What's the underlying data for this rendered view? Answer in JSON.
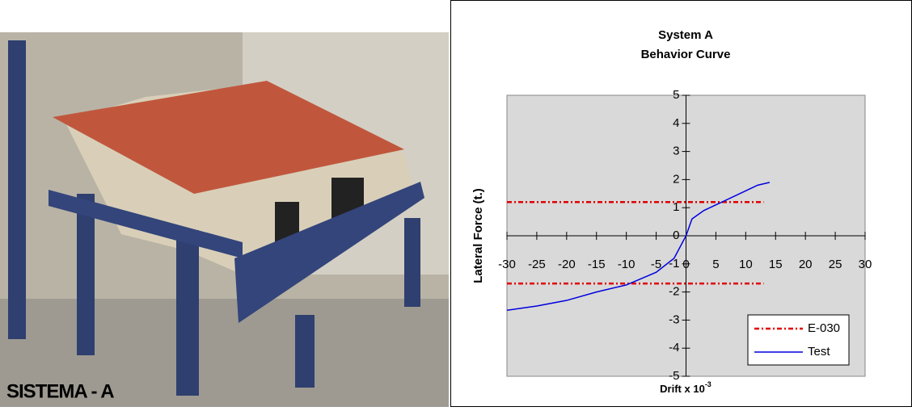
{
  "caption": "SISTEMA - A",
  "chart_data": {
    "type": "line",
    "title": "System A",
    "subtitle": "Behavior Curve",
    "xlabel": "Drift x 10",
    "xlabel_sup": "-3",
    "ylabel": "Lateral Force (t.)",
    "xlim": [
      -30,
      30
    ],
    "ylim": [
      -5,
      5
    ],
    "xticks": [
      -30,
      -25,
      -20,
      -15,
      -10,
      -5,
      0,
      5,
      10,
      15,
      20,
      25,
      30
    ],
    "yticks": [
      -5,
      -4,
      -3,
      -2,
      -1,
      0,
      1,
      2,
      3,
      4,
      5
    ],
    "legend": "lower right",
    "series": [
      {
        "name": "E-030",
        "color": "#e00000",
        "dash": "dashdot",
        "x": [
          -30,
          13,
          null,
          -30,
          13
        ],
        "values": [
          1.2,
          1.2,
          null,
          -1.7,
          -1.7
        ]
      },
      {
        "name": "Test",
        "color": "#0000e0",
        "dash": "solid",
        "x": [
          -30,
          -25,
          -20,
          -15,
          -10,
          -5,
          -2,
          0,
          1,
          3,
          5,
          8,
          10,
          12,
          14
        ],
        "values": [
          -2.65,
          -2.5,
          -2.3,
          -2.0,
          -1.75,
          -1.3,
          -0.8,
          0,
          0.6,
          0.9,
          1.1,
          1.4,
          1.6,
          1.8,
          1.9
        ]
      }
    ]
  }
}
